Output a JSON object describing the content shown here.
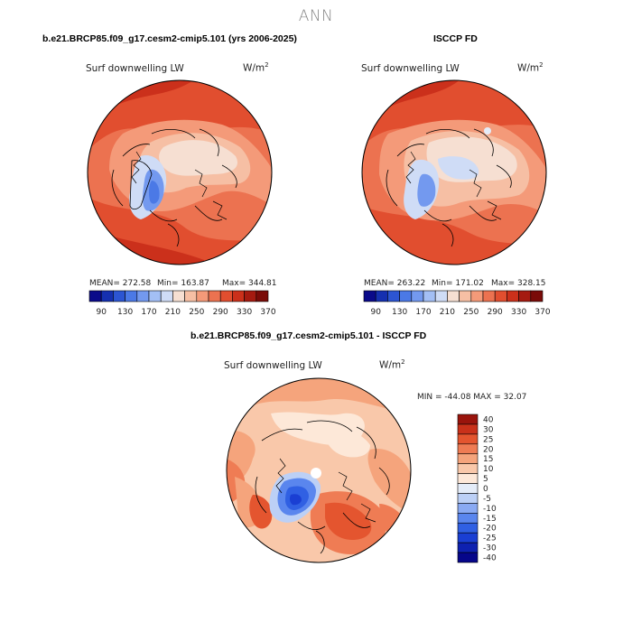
{
  "season": "ANN",
  "panels": {
    "model": {
      "title": "b.e21.BRCP85.f09_g17.cesm2-cmip5.101 (yrs 2006-2025)",
      "variable": "Surf downwelling LW",
      "units_base": "W/m",
      "units_exp": "2",
      "mean": "MEAN= 272.58",
      "min": "Min= 163.87",
      "max": "Max= 344.81"
    },
    "obs": {
      "title": "ISCCP FD",
      "variable": "Surf downwelling LW",
      "units_base": "W/m",
      "units_exp": "2",
      "mean": "MEAN= 263.22",
      "min": "Min= 171.02",
      "max": "Max= 328.15"
    },
    "diff": {
      "title": "b.e21.BRCP85.f09_g17.cesm2-cmip5.101 - ISCCP FD",
      "variable": "Surf downwelling LW",
      "units_base": "W/m",
      "units_exp": "2",
      "minmax": "MIN = -44.08 MAX =  32.07"
    }
  },
  "colorbars": {
    "absolute": {
      "colors": [
        "#0a0a8a",
        "#1530b0",
        "#2c55d2",
        "#4b79e6",
        "#7399ef",
        "#a3bff5",
        "#cfdcf6",
        "#f6dfd2",
        "#f6bfa4",
        "#f49a79",
        "#ec7250",
        "#e14e2f",
        "#cb301b",
        "#a51a10",
        "#7a0b08"
      ],
      "tick_labels": [
        "90",
        "130",
        "170",
        "210",
        "250",
        "290",
        "330",
        "370"
      ]
    },
    "difference": {
      "colors": [
        "#06068a",
        "#0e21b0",
        "#1a3fd3",
        "#3060e3",
        "#5a86ee",
        "#8aaaf3",
        "#bcd0f6",
        "#e4ecf8",
        "#fde8d8",
        "#f9c8aa",
        "#f5a47c",
        "#ef7c54",
        "#e4552f",
        "#c9311a",
        "#9a140c"
      ],
      "tick_labels": [
        "40",
        "30",
        "25",
        "20",
        "15",
        "10",
        "5",
        "0",
        "-5",
        "-10",
        "-15",
        "-20",
        "-25",
        "-30",
        "-40"
      ]
    }
  }
}
